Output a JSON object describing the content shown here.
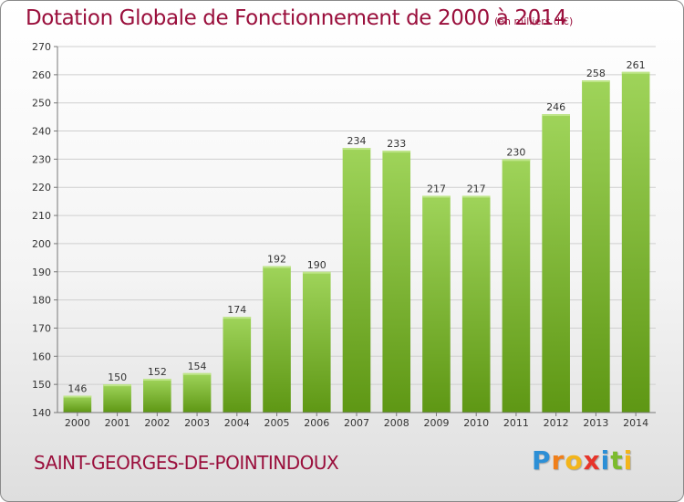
{
  "header": {
    "title": "Dotation Globale de Fonctionnement de 2000 à 2014",
    "unit": "(en milliers d'€)"
  },
  "footer": {
    "commune": "SAINT-GEORGES-DE-POINTINDOUX",
    "logo_letters": [
      "P",
      "r",
      "o",
      "x",
      "i",
      "t",
      "i"
    ],
    "logo_colors": [
      "#2c8fd6",
      "#f07f1a",
      "#f3b51b",
      "#e7342a",
      "#2c8fd6",
      "#7cbb2d",
      "#f3b51b"
    ]
  },
  "colors": {
    "title": "#9a0f3c",
    "bar_light": "#9fd45a",
    "bar_dark": "#5e9714",
    "grid": "#cfcfcf",
    "axis_text": "#333333"
  },
  "chart_data": {
    "type": "bar",
    "title": "Dotation Globale de Fonctionnement de 2000 à 2014",
    "ylabel": "en milliers d'€",
    "xlabel": "",
    "categories": [
      "2000",
      "2001",
      "2002",
      "2003",
      "2004",
      "2005",
      "2006",
      "2007",
      "2008",
      "2009",
      "2010",
      "2011",
      "2012",
      "2013",
      "2014"
    ],
    "values": [
      146,
      150,
      152,
      154,
      174,
      192,
      190,
      234,
      233,
      217,
      217,
      230,
      246,
      258,
      261
    ],
    "ylim": [
      140,
      270
    ],
    "yticks": [
      140,
      150,
      160,
      170,
      180,
      190,
      200,
      210,
      220,
      230,
      240,
      250,
      260,
      270
    ],
    "grid": true
  }
}
